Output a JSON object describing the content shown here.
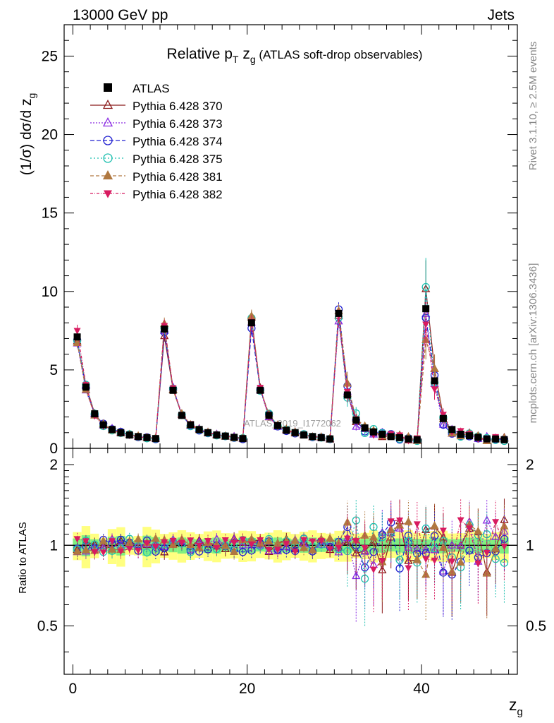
{
  "header": {
    "left": "13000 GeV pp",
    "right": "Jets"
  },
  "side_labels": {
    "rivet": "Rivet 3.1.10, ≥ 2.5M events",
    "mcplots": "mcplots.cern.ch [arXiv:1306.3436]"
  },
  "watermark": "ATLAS_2019_I1772062",
  "chart_data": [
    {
      "type": "scatter",
      "title_parts": {
        "pre": "Relative p",
        "sub": "T",
        "mid": " z",
        "sub2": "g",
        "post": " (ATLAS soft-drop observables)"
      },
      "ylabel": "(1/σ) dσ/d z",
      "ylabel_sub": "g",
      "xlim": [
        -1,
        51
      ],
      "ylim": [
        0,
        27
      ],
      "yticks": [
        0,
        5,
        10,
        15,
        20,
        25
      ],
      "yticklabels": [
        "0",
        "5",
        "10",
        "15",
        "20",
        "25"
      ],
      "legend": {
        "placement": "top-left",
        "entries": [
          "ATLAS",
          "Pythia 6.428 370",
          "Pythia 6.428 373",
          "Pythia 6.428 374",
          "Pythia 6.428 375",
          "Pythia 6.428 381",
          "Pythia 6.428 382"
        ]
      },
      "series": [
        {
          "name": "ATLAS",
          "color": "#000000",
          "marker": "square",
          "x": [
            0.5,
            1.5,
            2.5,
            3.5,
            4.5,
            5.5,
            6.5,
            7.5,
            8.5,
            9.5,
            10.5,
            11.5,
            12.5,
            13.5,
            14.5,
            15.5,
            16.5,
            17.5,
            18.5,
            19.5,
            20.5,
            21.5,
            22.5,
            23.5,
            24.5,
            25.5,
            26.5,
            27.5,
            28.5,
            29.5,
            30.5,
            31.5,
            32.5,
            33.5,
            34.5,
            35.5,
            36.5,
            37.5,
            38.5,
            39.5,
            40.5,
            41.5,
            42.5,
            43.5,
            44.5,
            45.5,
            46.5,
            47.5,
            48.5,
            49.5
          ],
          "y": [
            7.1,
            3.9,
            2.2,
            1.5,
            1.2,
            1.0,
            0.85,
            0.75,
            0.68,
            0.62,
            7.6,
            3.7,
            2.1,
            1.5,
            1.2,
            1.0,
            0.85,
            0.78,
            0.7,
            0.62,
            8.0,
            3.7,
            2.1,
            1.45,
            1.15,
            1.0,
            0.85,
            0.75,
            0.68,
            0.6,
            8.6,
            3.4,
            1.8,
            1.3,
            1.05,
            0.9,
            0.75,
            0.68,
            0.6,
            0.55,
            8.9,
            4.3,
            1.9,
            1.2,
            0.9,
            0.8,
            0.7,
            0.6,
            0.6,
            0.55
          ]
        },
        {
          "name": "Pythia 6.428 370",
          "color": "#8b1a1a",
          "marker": "triangle-up-open"
        },
        {
          "name": "Pythia 6.428 373",
          "color": "#8a2be2",
          "marker": "triangle-up-open"
        },
        {
          "name": "Pythia 6.428 374",
          "color": "#2020d0",
          "marker": "circle-open"
        },
        {
          "name": "Pythia 6.428 375",
          "color": "#20c0b0",
          "marker": "circle-open"
        },
        {
          "name": "Pythia 6.428 381",
          "color": "#b07840",
          "marker": "triangle-up"
        },
        {
          "name": "Pythia 6.428 382",
          "color": "#d81b60",
          "marker": "triangle-down"
        }
      ]
    },
    {
      "type": "scatter",
      "ylabel": "Ratio to ATLAS",
      "xlabel": "z",
      "xlabel_sub": "g",
      "xlim": [
        -1,
        51
      ],
      "ylim": [
        0.33,
        2.3
      ],
      "xticks": [
        0,
        20,
        40
      ],
      "xticklabels": [
        "0",
        "20",
        "40"
      ],
      "yticks": [
        0.5,
        1,
        2
      ],
      "yticklabels": [
        "0.5",
        "1",
        "2"
      ],
      "reference": 1
    }
  ]
}
